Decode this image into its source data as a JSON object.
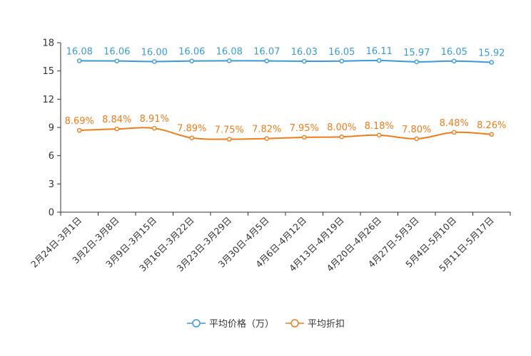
{
  "chart_data": {
    "type": "line",
    "categories": [
      "2月24日-3月1日",
      "3月2日-3月8日",
      "3月9日-3月15日",
      "3月16日-3月22日",
      "3月23日-3月29日",
      "3月30日-4月5日",
      "4月6日-4月12日",
      "4月13日-4月19日",
      "4月20日-4月26日",
      "4月27日-5月3日",
      "5月4日-5月10日",
      "5月11日-5月17日"
    ],
    "ylim": [
      0,
      18
    ],
    "yticks": [
      0,
      3,
      6,
      9,
      12,
      15,
      18
    ],
    "series": [
      {
        "name": "平均价格（万）",
        "color": "#3a9ad9",
        "values": [
          16.08,
          16.06,
          16.0,
          16.06,
          16.08,
          16.07,
          16.03,
          16.05,
          16.11,
          15.97,
          16.05,
          15.92
        ],
        "labels": [
          "16.08",
          "16.06",
          "16.00",
          "16.06",
          "16.08",
          "16.07",
          "16.03",
          "16.05",
          "16.11",
          "15.97",
          "16.05",
          "15.92"
        ]
      },
      {
        "name": "平均折扣",
        "color": "#f07c1a",
        "values": [
          8.69,
          8.84,
          8.91,
          7.89,
          7.75,
          7.82,
          7.95,
          8.0,
          8.18,
          7.8,
          8.48,
          8.26
        ],
        "labels": [
          "8.69%",
          "8.84%",
          "8.91%",
          "7.89%",
          "7.75%",
          "7.82%",
          "7.95%",
          "8.00%",
          "8.18%",
          "7.80%",
          "8.48%",
          "8.26%"
        ]
      }
    ],
    "legend_position": "bottom-center"
  }
}
